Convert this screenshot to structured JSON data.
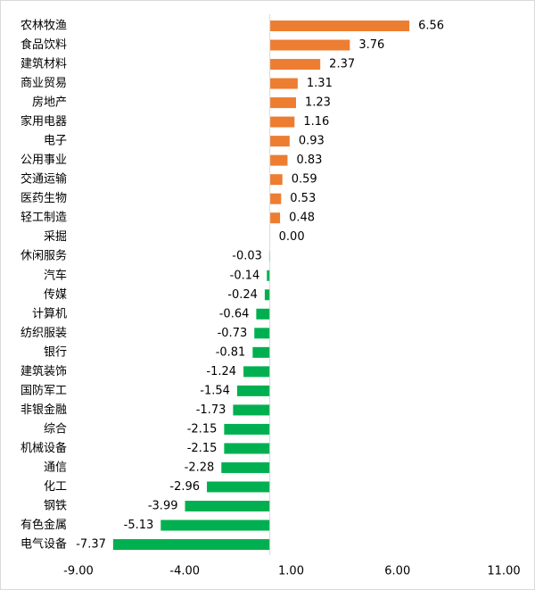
{
  "chart_data": {
    "type": "bar",
    "orientation": "horizontal",
    "categories": [
      "农林牧渔",
      "食品饮料",
      "建筑材料",
      "商业贸易",
      "房地产",
      "家用电器",
      "电子",
      "公用事业",
      "交通运输",
      "医药生物",
      "轻工制造",
      "采掘",
      "休闲服务",
      "汽车",
      "传媒",
      "计算机",
      "纺织服装",
      "银行",
      "建筑装饰",
      "国防军工",
      "非银金融",
      "综合",
      "机械设备",
      "通信",
      "化工",
      "钢铁",
      "有色金属",
      "电气设备"
    ],
    "values": [
      6.56,
      3.76,
      2.37,
      1.31,
      1.23,
      1.16,
      0.93,
      0.83,
      0.59,
      0.53,
      0.48,
      0,
      -0.03,
      -0.14,
      -0.24,
      -0.64,
      -0.73,
      -0.81,
      -1.24,
      -1.54,
      -1.73,
      -2.15,
      -2.15,
      -2.28,
      -2.96,
      -3.99,
      -5.13,
      -7.37
    ],
    "value_labels": [
      "6.56",
      "3.76",
      "2.37",
      "1.31",
      "1.23",
      "1.16",
      "0.93",
      "0.83",
      "0.59",
      "0.53",
      "0.48",
      "0.00",
      "-0.03",
      "-0.14",
      "-0.24",
      "-0.64",
      "-0.73",
      "-0.81",
      "-1.24",
      "-1.54",
      "-1.73",
      "-2.15",
      "-2.15",
      "-2.28",
      "-2.96",
      "-3.99",
      "-5.13",
      "-7.37"
    ],
    "positive_color": "#ED7D31",
    "negative_color": "#00B050",
    "xlim": [
      -9,
      11
    ],
    "xticks": [
      {
        "value": -9,
        "label": "-9.00"
      },
      {
        "value": -4,
        "label": "-4.00"
      },
      {
        "value": 1,
        "label": "1.00"
      },
      {
        "value": 6,
        "label": "6.00"
      },
      {
        "value": 11,
        "label": "11.00"
      }
    ]
  }
}
